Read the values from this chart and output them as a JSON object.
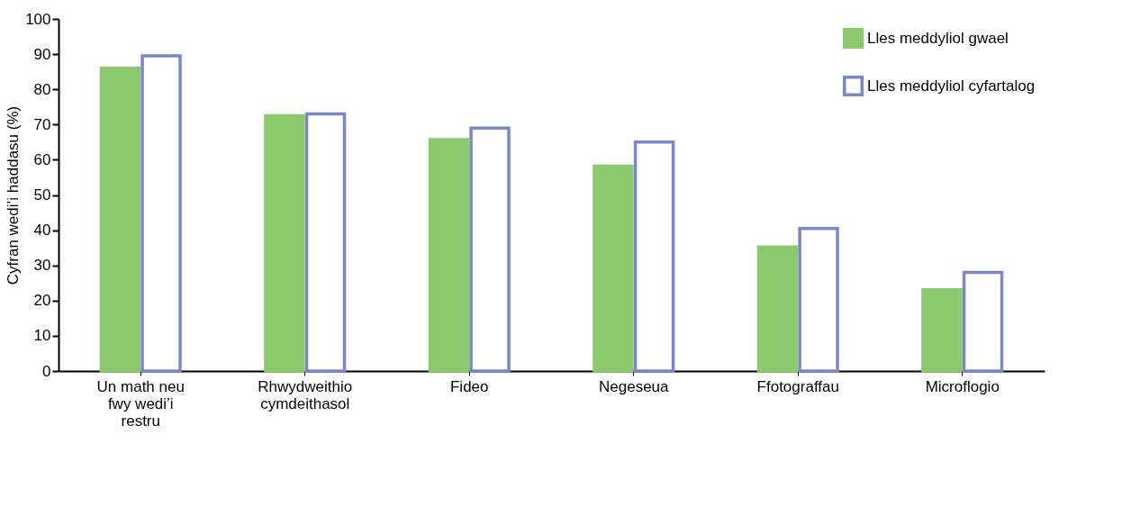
{
  "chart_data": {
    "type": "bar",
    "ylabel": "Cyfran wedi’i haddasu (%)",
    "categories": [
      "Un math neu fwy wedi’i restru",
      "Rhwydweithio cymdeithasol",
      "Fideo",
      "Negeseua",
      "Ffotograffau",
      "Microflogio"
    ],
    "series": [
      {
        "name": "Lles meddyliol gwael",
        "color": "#8cc86e",
        "values": [
          86,
          72.5,
          65.7,
          58.2,
          35.2,
          23.1
        ]
      },
      {
        "name": "Lles meddyliol cyfartalog",
        "color": "#7b88c8",
        "values": [
          89.5,
          73,
          69,
          65,
          40.5,
          28
        ]
      }
    ],
    "ylim": [
      0,
      100
    ],
    "yticks": [
      0,
      10,
      20,
      30,
      40,
      50,
      60,
      70,
      80,
      90,
      100
    ],
    "grid": false,
    "legend": "top right"
  }
}
